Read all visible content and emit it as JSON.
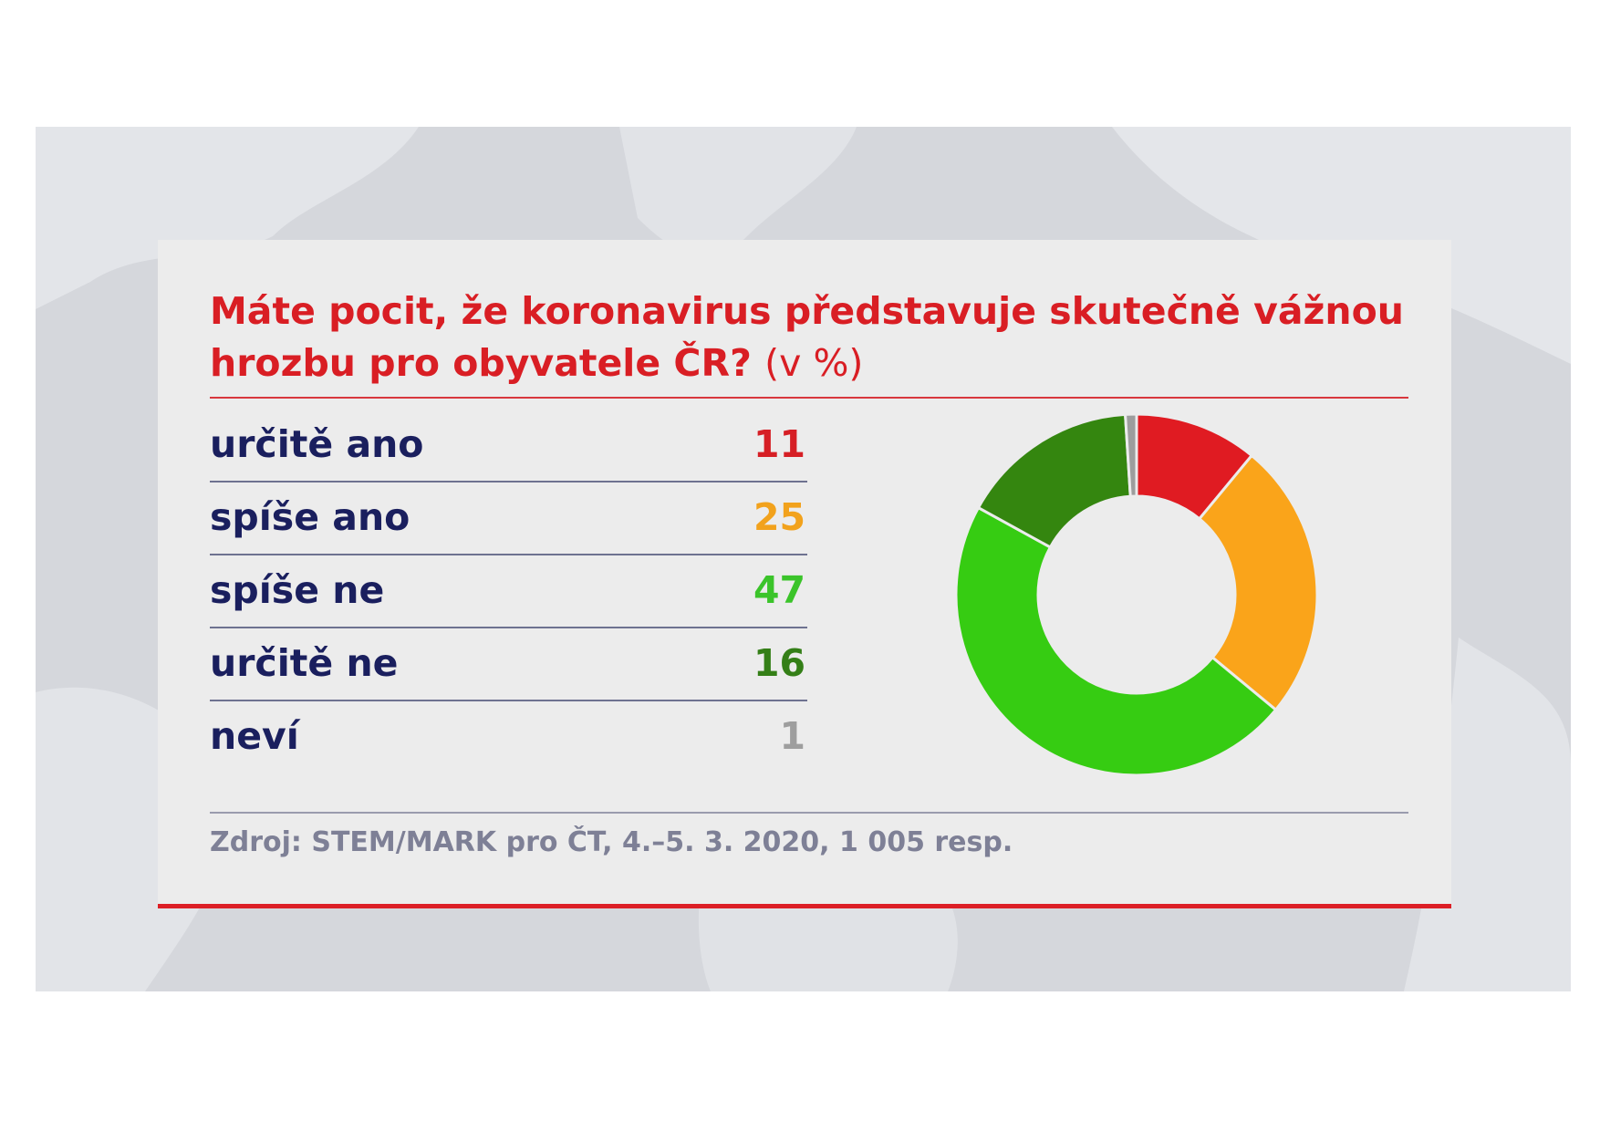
{
  "title": "Máte pocit, že koronavirus představuje skutečně vážnou hrozbu pro obyvatele ČR?",
  "title_unit": "(v %)",
  "source": "Zdroj: STEM/MARK pro ČT, 4.–5. 3. 2020, 1 005 resp.",
  "chart_data": {
    "type": "pie",
    "style": "donut",
    "title": "Máte pocit, že koronavirus představuje skutečně vážnou hrozbu pro obyvatele ČR? (v %)",
    "categories": [
      "určitě ano",
      "spíše ano",
      "spíše ne",
      "určitě ne",
      "neví"
    ],
    "values": [
      11,
      25,
      47,
      16,
      1
    ],
    "colors": [
      "#e01b22",
      "#faa41a",
      "#36cc12",
      "#34860f",
      "#9d9d9d"
    ],
    "value_text_colors": [
      "#d61f25",
      "#f2a21c",
      "#3bc42a",
      "#347f17",
      "#9e9e9e"
    ],
    "unit": "%",
    "legend_placement": "left"
  }
}
